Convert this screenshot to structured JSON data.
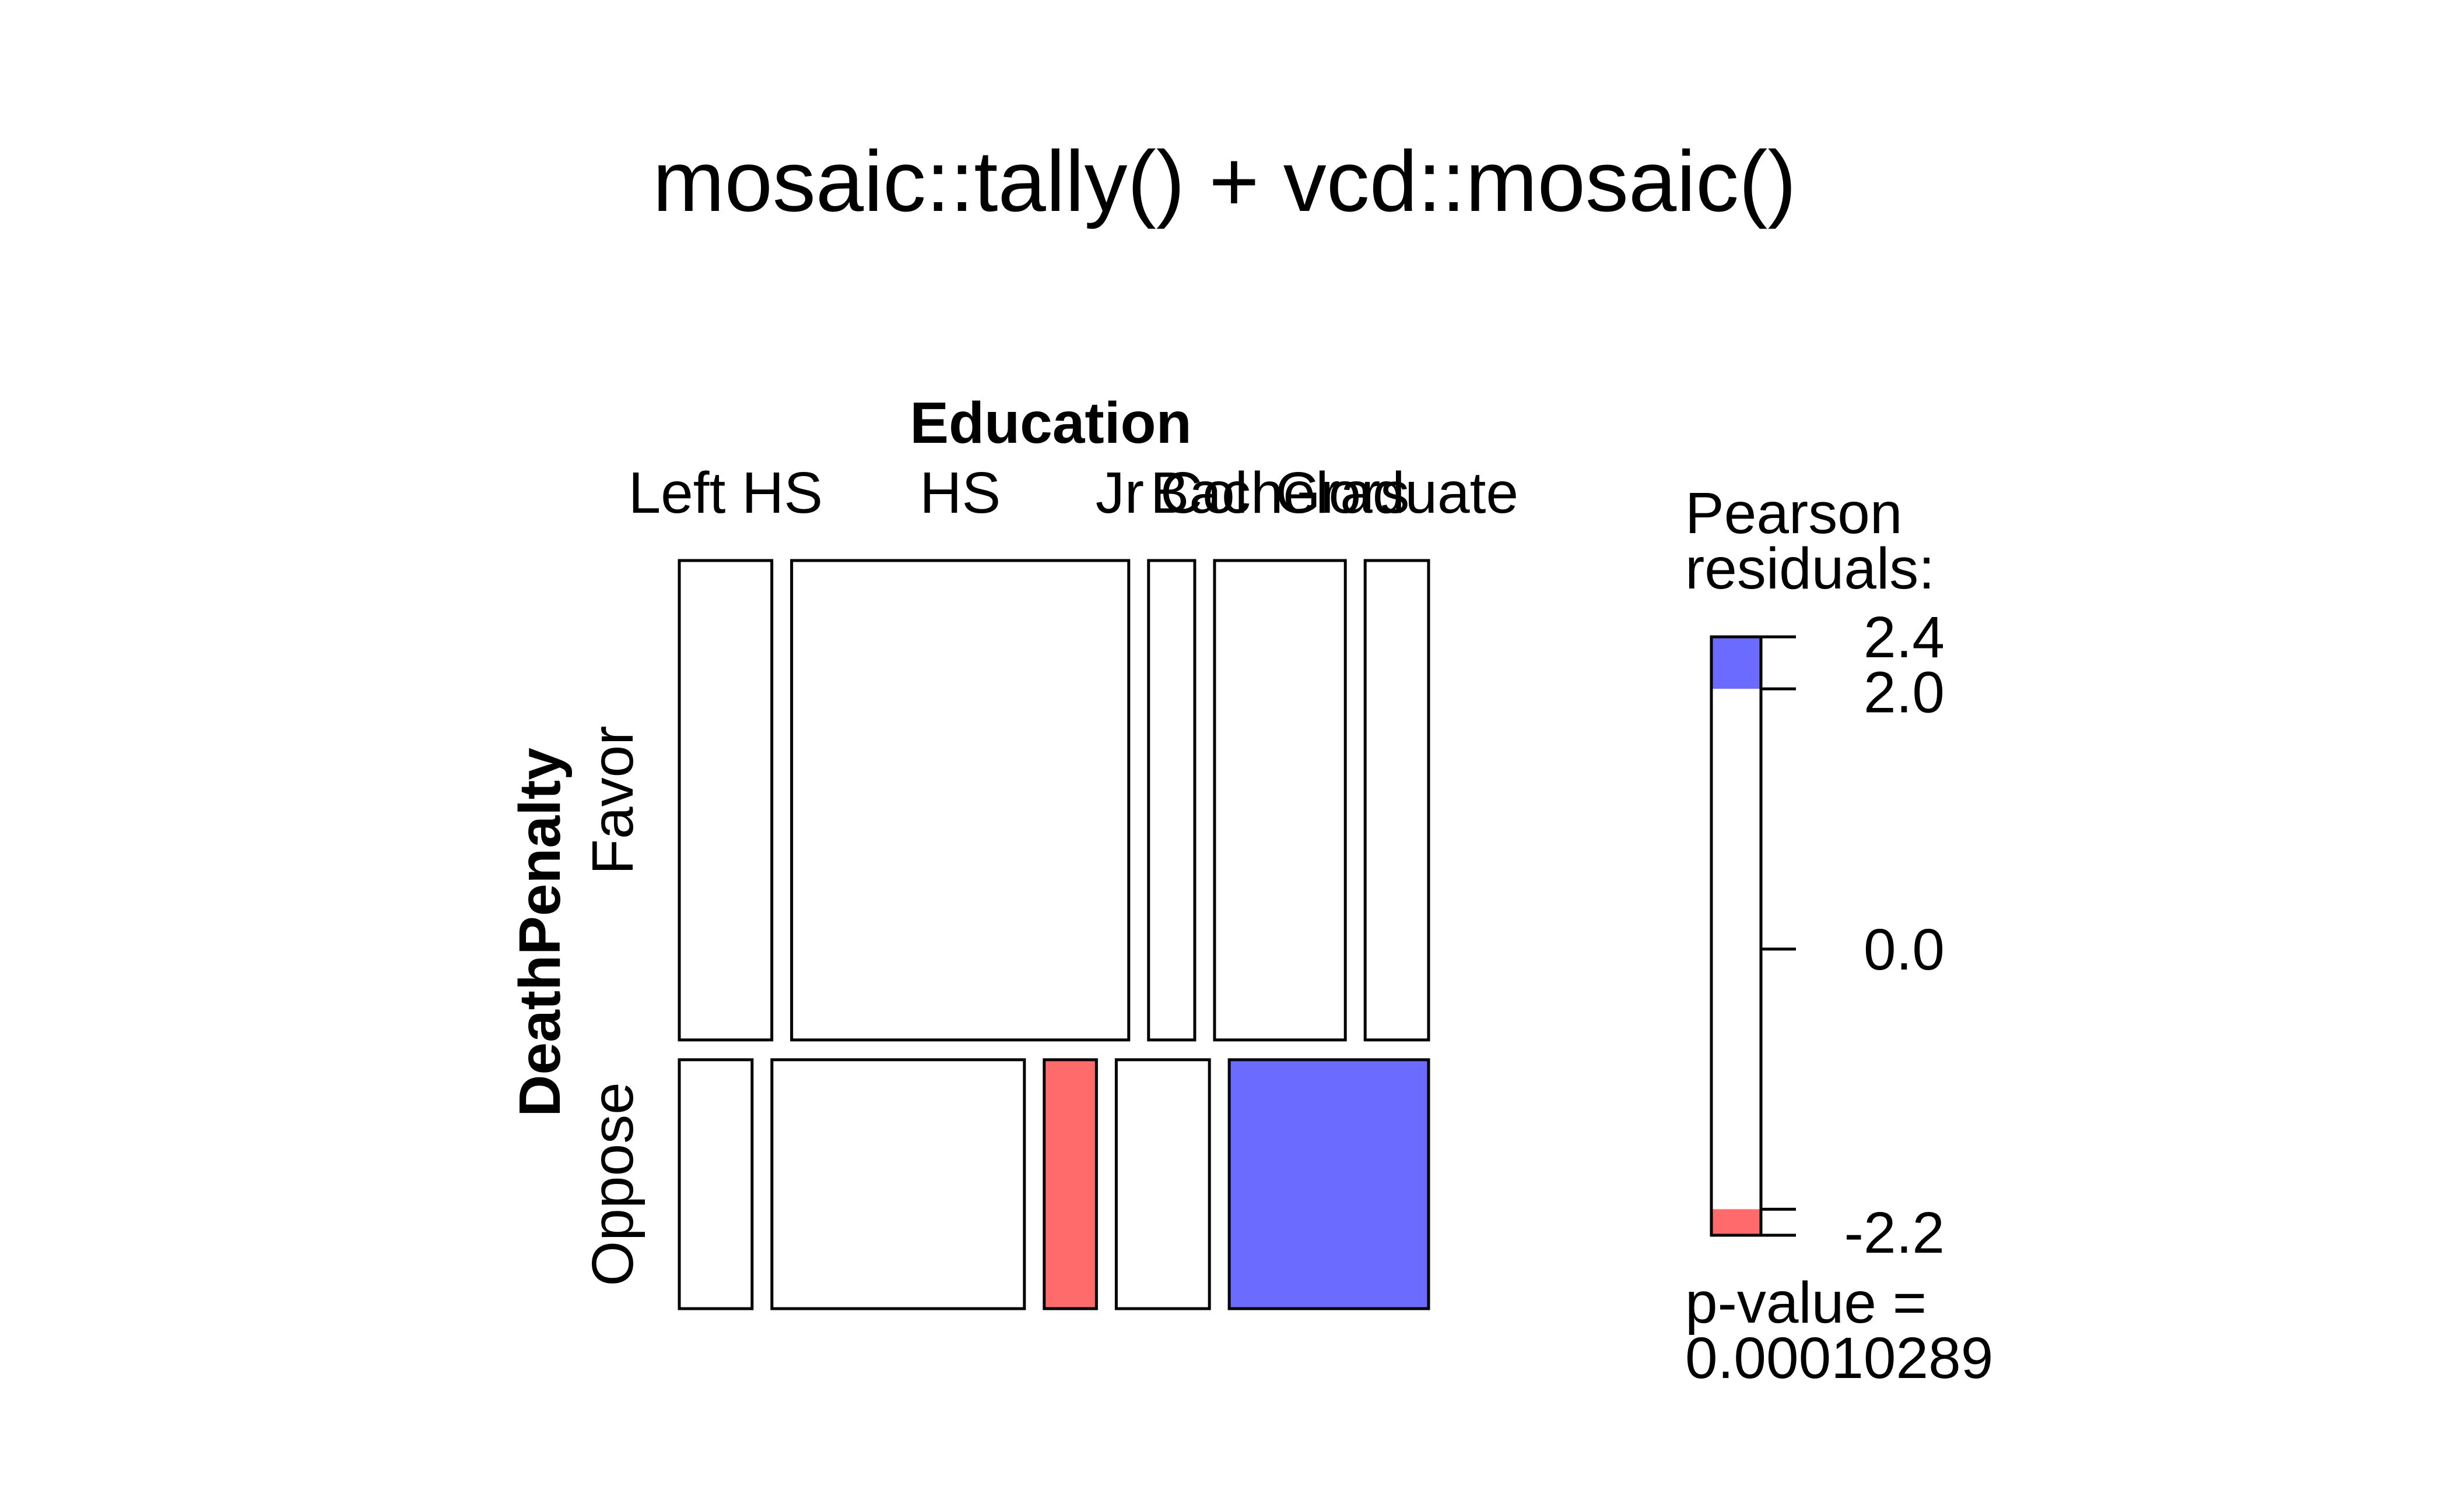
{
  "chart_data": {
    "type": "mosaic",
    "title": "mosaic::tally() + vcd::mosaic()",
    "column_variable": "Education",
    "row_variable": "DeathPenalty",
    "columns": [
      "Left HS",
      "HS",
      "Jr Col",
      "Bachelors",
      "Graduate"
    ],
    "rows": [
      "Favor",
      "Oppose"
    ],
    "column_proportions": [
      0.128,
      0.46,
      0.072,
      0.176,
      0.164
    ],
    "favor_proportions": [
      0.71,
      0.72,
      0.63,
      0.73,
      0.38
    ],
    "pearson_residuals": [
      [
        -0.3,
        0.3,
        0.9,
        -0.2,
        -1.5
      ],
      [
        0.5,
        -0.5,
        -2.1,
        0.4,
        2.4
      ]
    ],
    "legend": {
      "title_line1": "Pearson",
      "title_line2": "residuals:",
      "range": [
        -2.2,
        2.4
      ],
      "ticks": [
        "2.4",
        "2.0",
        "0.0",
        "-2.2"
      ],
      "shading_cutoff": 2.0,
      "positive_color": "#6B6BFF",
      "negative_color": "#FF6B6B",
      "neutral_color": "#FFFFFF"
    },
    "p_value_line1": "p-value =",
    "p_value_line2": "0.00010289"
  }
}
